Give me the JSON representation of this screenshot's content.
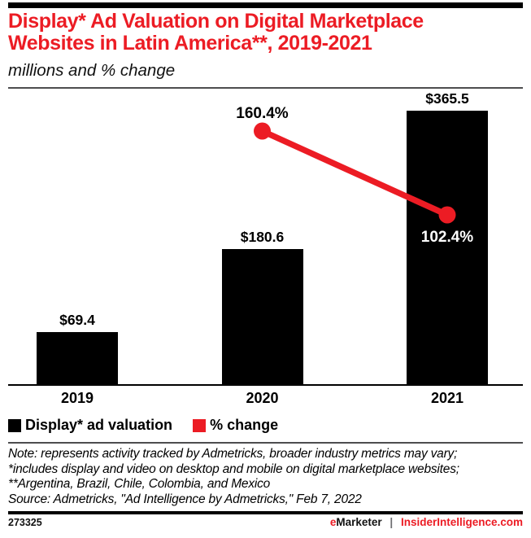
{
  "header": {
    "title": "Display* Ad Valuation on Digital Marketplace Websites in Latin America**, 2019-2021",
    "title_lines": [
      "Display* Ad Valuation on Digital Marketplace",
      "Websites in Latin America**, 2019-2021"
    ],
    "subtitle": "millions and % change"
  },
  "chart_data": {
    "type": "bar",
    "title": "Display* Ad Valuation on Digital Marketplace Websites in Latin America**, 2019-2021",
    "subtitle": "millions and % change",
    "categories": [
      "2019",
      "2020",
      "2021"
    ],
    "series": [
      {
        "name": "Display* ad valuation",
        "type": "bar",
        "unit": "$ millions",
        "values": [
          69.4,
          180.6,
          365.5
        ],
        "labels": [
          "$69.4",
          "$180.6",
          "$365.5"
        ],
        "color": "#000000"
      },
      {
        "name": "% change",
        "type": "line",
        "unit": "%",
        "values": [
          null,
          160.4,
          102.4
        ],
        "labels": [
          null,
          "160.4%",
          "102.4%"
        ],
        "label_placement": [
          null,
          "above",
          "below"
        ],
        "color": "#ec1c24"
      }
    ],
    "legend_position": "bottom",
    "grid": false,
    "xlabel": "",
    "ylabel": ""
  },
  "legend": {
    "items": [
      {
        "label": "Display* ad valuation",
        "color": "#000000"
      },
      {
        "label": "% change",
        "color": "#ec1c24"
      }
    ]
  },
  "notes": {
    "lines": [
      "Note: represents activity tracked by Admetricks, broader industry metrics may vary;",
      "*includes display and video on desktop and mobile on digital marketplace websites;",
      "**Argentina, Brazil, Chile, Colombia, and Mexico",
      "Source: Admetricks, \"Ad Intelligence by Admetricks,\" Feb 7, 2022"
    ]
  },
  "footer": {
    "chart_id": "273325",
    "emarketer_e": "e",
    "emarketer_rest": "Marketer",
    "separator": "|",
    "site": "InsiderIntelligence.com"
  },
  "colors": {
    "accent_red": "#ec1c24",
    "bar_black": "#000000",
    "rule_gray": "#4d4d4f"
  }
}
